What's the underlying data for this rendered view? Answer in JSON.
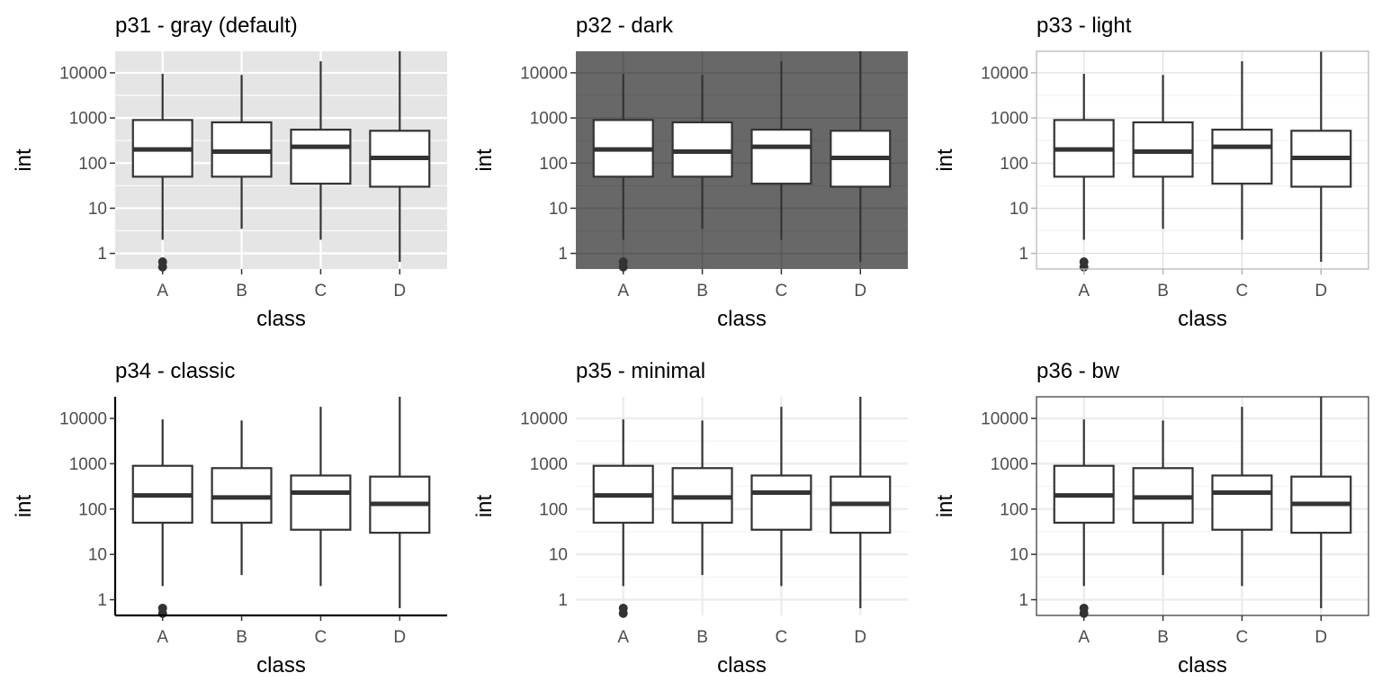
{
  "chart_data": [
    {
      "type": "box",
      "title": "p31 - gray (default)",
      "theme": "gray",
      "xlabel": "class",
      "ylabel": "int",
      "y_scale": "log10",
      "ylim": [
        0.45,
        30000
      ],
      "grid": "on",
      "categories": [
        "A",
        "B",
        "C",
        "D"
      ],
      "y_ticks": [
        1,
        10,
        100,
        1000,
        10000
      ],
      "y_tick_labels": [
        "1",
        "10",
        "100",
        "1000",
        "10000"
      ],
      "boxes": [
        {
          "category": "A",
          "whisker_low": 2,
          "q1": 50,
          "median": 200,
          "q3": 900,
          "whisker_high": 9500,
          "outliers": [
            0.5,
            0.65
          ]
        },
        {
          "category": "B",
          "whisker_low": 3.5,
          "q1": 50,
          "median": 180,
          "q3": 800,
          "whisker_high": 9000,
          "outliers": []
        },
        {
          "category": "C",
          "whisker_low": 2,
          "q1": 35,
          "median": 230,
          "q3": 550,
          "whisker_high": 18000,
          "outliers": []
        },
        {
          "category": "D",
          "whisker_low": 0.65,
          "q1": 30,
          "median": 130,
          "q3": 520,
          "whisker_high": 30000,
          "outliers": []
        }
      ]
    },
    {
      "type": "box",
      "title": "p32 - dark",
      "theme": "dark",
      "xlabel": "class",
      "ylabel": "int",
      "y_scale": "log10",
      "ylim": [
        0.45,
        30000
      ],
      "grid": "on",
      "categories": [
        "A",
        "B",
        "C",
        "D"
      ],
      "y_ticks": [
        1,
        10,
        100,
        1000,
        10000
      ],
      "y_tick_labels": [
        "1",
        "10",
        "100",
        "1000",
        "10000"
      ],
      "boxes": [
        {
          "category": "A",
          "whisker_low": 2,
          "q1": 50,
          "median": 200,
          "q3": 900,
          "whisker_high": 9500,
          "outliers": [
            0.5,
            0.65
          ]
        },
        {
          "category": "B",
          "whisker_low": 3.5,
          "q1": 50,
          "median": 180,
          "q3": 800,
          "whisker_high": 9000,
          "outliers": []
        },
        {
          "category": "C",
          "whisker_low": 2,
          "q1": 35,
          "median": 230,
          "q3": 550,
          "whisker_high": 18000,
          "outliers": []
        },
        {
          "category": "D",
          "whisker_low": 0.65,
          "q1": 30,
          "median": 130,
          "q3": 520,
          "whisker_high": 30000,
          "outliers": []
        }
      ]
    },
    {
      "type": "box",
      "title": "p33 - light",
      "theme": "light",
      "xlabel": "class",
      "ylabel": "int",
      "y_scale": "log10",
      "ylim": [
        0.45,
        30000
      ],
      "grid": "on",
      "categories": [
        "A",
        "B",
        "C",
        "D"
      ],
      "y_ticks": [
        1,
        10,
        100,
        1000,
        10000
      ],
      "y_tick_labels": [
        "1",
        "10",
        "100",
        "1000",
        "10000"
      ],
      "boxes": [
        {
          "category": "A",
          "whisker_low": 2,
          "q1": 50,
          "median": 200,
          "q3": 900,
          "whisker_high": 9500,
          "outliers": [
            0.5,
            0.65
          ]
        },
        {
          "category": "B",
          "whisker_low": 3.5,
          "q1": 50,
          "median": 180,
          "q3": 800,
          "whisker_high": 9000,
          "outliers": []
        },
        {
          "category": "C",
          "whisker_low": 2,
          "q1": 35,
          "median": 230,
          "q3": 550,
          "whisker_high": 18000,
          "outliers": []
        },
        {
          "category": "D",
          "whisker_low": 0.65,
          "q1": 30,
          "median": 130,
          "q3": 520,
          "whisker_high": 30000,
          "outliers": []
        }
      ]
    },
    {
      "type": "box",
      "title": "p34 - classic",
      "theme": "classic",
      "xlabel": "class",
      "ylabel": "int",
      "y_scale": "log10",
      "ylim": [
        0.45,
        30000
      ],
      "grid": "off",
      "categories": [
        "A",
        "B",
        "C",
        "D"
      ],
      "y_ticks": [
        1,
        10,
        100,
        1000,
        10000
      ],
      "y_tick_labels": [
        "1",
        "10",
        "100",
        "1000",
        "10000"
      ],
      "boxes": [
        {
          "category": "A",
          "whisker_low": 2,
          "q1": 50,
          "median": 200,
          "q3": 900,
          "whisker_high": 9500,
          "outliers": [
            0.5,
            0.65
          ]
        },
        {
          "category": "B",
          "whisker_low": 3.5,
          "q1": 50,
          "median": 180,
          "q3": 800,
          "whisker_high": 9000,
          "outliers": []
        },
        {
          "category": "C",
          "whisker_low": 2,
          "q1": 35,
          "median": 230,
          "q3": 550,
          "whisker_high": 18000,
          "outliers": []
        },
        {
          "category": "D",
          "whisker_low": 0.65,
          "q1": 30,
          "median": 130,
          "q3": 520,
          "whisker_high": 30000,
          "outliers": []
        }
      ]
    },
    {
      "type": "box",
      "title": "p35 - minimal",
      "theme": "minimal",
      "xlabel": "class",
      "ylabel": "int",
      "y_scale": "log10",
      "ylim": [
        0.45,
        30000
      ],
      "grid": "on",
      "categories": [
        "A",
        "B",
        "C",
        "D"
      ],
      "y_ticks": [
        1,
        10,
        100,
        1000,
        10000
      ],
      "y_tick_labels": [
        "1",
        "10",
        "100",
        "1000",
        "10000"
      ],
      "boxes": [
        {
          "category": "A",
          "whisker_low": 2,
          "q1": 50,
          "median": 200,
          "q3": 900,
          "whisker_high": 9500,
          "outliers": [
            0.5,
            0.65
          ]
        },
        {
          "category": "B",
          "whisker_low": 3.5,
          "q1": 50,
          "median": 180,
          "q3": 800,
          "whisker_high": 9000,
          "outliers": []
        },
        {
          "category": "C",
          "whisker_low": 2,
          "q1": 35,
          "median": 230,
          "q3": 550,
          "whisker_high": 18000,
          "outliers": []
        },
        {
          "category": "D",
          "whisker_low": 0.65,
          "q1": 30,
          "median": 130,
          "q3": 520,
          "whisker_high": 30000,
          "outliers": []
        }
      ]
    },
    {
      "type": "box",
      "title": "p36 - bw",
      "theme": "bw",
      "xlabel": "class",
      "ylabel": "int",
      "y_scale": "log10",
      "ylim": [
        0.45,
        30000
      ],
      "grid": "on",
      "categories": [
        "A",
        "B",
        "C",
        "D"
      ],
      "y_ticks": [
        1,
        10,
        100,
        1000,
        10000
      ],
      "y_tick_labels": [
        "1",
        "10",
        "100",
        "1000",
        "10000"
      ],
      "boxes": [
        {
          "category": "A",
          "whisker_low": 2,
          "q1": 50,
          "median": 200,
          "q3": 900,
          "whisker_high": 9500,
          "outliers": [
            0.5,
            0.65
          ]
        },
        {
          "category": "B",
          "whisker_low": 3.5,
          "q1": 50,
          "median": 180,
          "q3": 800,
          "whisker_high": 9000,
          "outliers": []
        },
        {
          "category": "C",
          "whisker_low": 2,
          "q1": 35,
          "median": 230,
          "q3": 550,
          "whisker_high": 18000,
          "outliers": []
        },
        {
          "category": "D",
          "whisker_low": 0.65,
          "q1": 30,
          "median": 130,
          "q3": 520,
          "whisker_high": 30000,
          "outliers": []
        }
      ]
    }
  ],
  "colors": {
    "ink": "#333333",
    "gray_panel": "#e5e5e5",
    "dark_panel": "#686868",
    "light_grid": "#dedede",
    "box_fill": "#ffffff"
  }
}
